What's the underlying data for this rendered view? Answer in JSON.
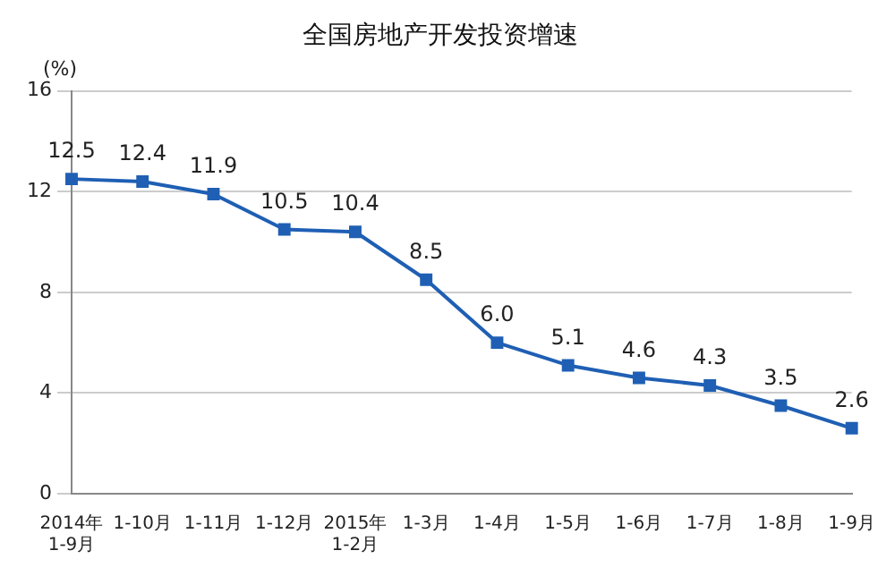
{
  "chart_data": {
    "type": "line",
    "title": "全国房地产开发投资增速",
    "ylabel": "(%)",
    "categories": [
      "2014年\n1-9月",
      "1-10月",
      "1-11月",
      "1-12月",
      "2015年\n1-2月",
      "1-3月",
      "1-4月",
      "1-5月",
      "1-6月",
      "1-7月",
      "1-8月",
      "1-9月"
    ],
    "series": [
      {
        "color": "#1f5fb4",
        "values": [
          12.5,
          12.4,
          11.9,
          10.5,
          10.4,
          8.5,
          6.0,
          5.1,
          4.6,
          4.3,
          3.5,
          2.6
        ],
        "value_labels": [
          "12.5",
          "12.4",
          "11.9",
          "10.5",
          "10.4",
          "8.5",
          "6.0",
          "5.1",
          "4.6",
          "4.3",
          "3.5",
          "2.6"
        ]
      }
    ],
    "ylim": [
      0,
      16
    ],
    "yticks": [
      0,
      4,
      8,
      12,
      16
    ],
    "grid": "y",
    "legend": false,
    "marker": "square",
    "line_style": "solid"
  }
}
